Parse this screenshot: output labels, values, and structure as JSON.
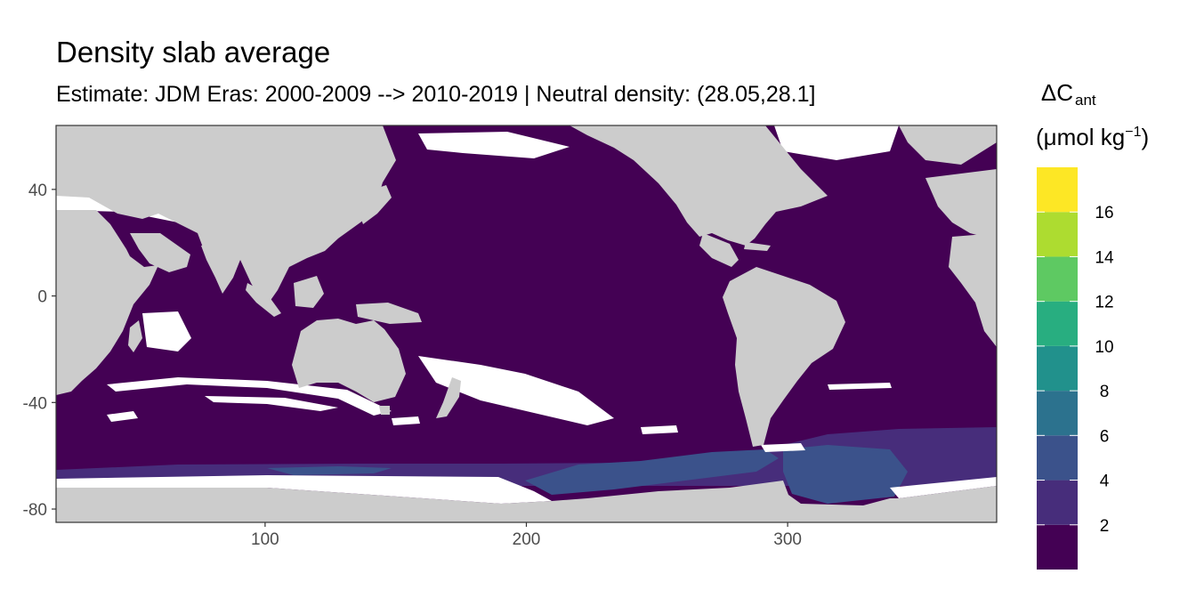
{
  "title": "Density slab average",
  "subtitle": "Estimate: JDM Eras: 2000-2009 --> 2010-2019 | Neutral density: (28.05,28.1]",
  "colors": {
    "land": "#cccccc",
    "no_data": "#ffffff",
    "panel_border": "#333333",
    "scale": [
      "#440154",
      "#472d7b",
      "#3b528b",
      "#2c728e",
      "#21918c",
      "#28ae80",
      "#5ec962",
      "#addc30",
      "#fde725"
    ]
  },
  "chart_data": {
    "type": "heatmap",
    "title": "Density slab average",
    "subtitle": "Estimate: JDM Eras: 2000-2009 --> 2010-2019 | Neutral density: (28.05,28.1]",
    "xlabel": "",
    "ylabel": "",
    "xlim": [
      20,
      380
    ],
    "ylim": [
      -85,
      64
    ],
    "x_ticks": [
      100,
      200,
      300
    ],
    "y_ticks": [
      40,
      0,
      -40,
      -80
    ],
    "legend": {
      "title_main": "ΔC",
      "title_sub": "ant",
      "unit": "(μmol kg",
      "unit_sup": "−1",
      "unit_close": ")",
      "position": "right",
      "breaks": [
        0,
        2,
        4,
        6,
        8,
        10,
        12,
        14,
        16,
        18
      ],
      "labels": [
        "2",
        "4",
        "6",
        "8",
        "10",
        "12",
        "14",
        "16"
      ]
    },
    "bands": [
      {
        "range": "0-2",
        "description": "most of the ocean between about 60N and 60S"
      },
      {
        "range": "2-4",
        "description": "Southern Ocean, Atlantic sector (about 290-380, 60-70S) and parts of the Indian sector"
      },
      {
        "range": "4-6",
        "description": "Weddell Sea and Ross Sea / Pacific sector near Antarctica"
      }
    ]
  }
}
